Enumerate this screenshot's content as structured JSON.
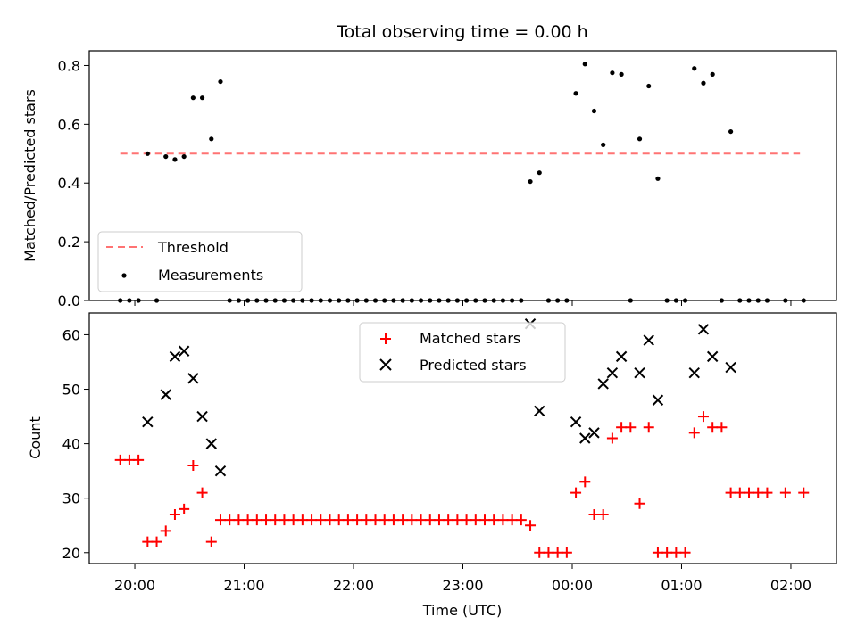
{
  "title": "Total observing time = 0.00 h",
  "colors": {
    "threshold": "#ff7373",
    "measurement": "#000000",
    "matched": "#ff0000",
    "predicted": "#000000"
  },
  "chart_data": [
    {
      "type": "scatter",
      "panel": "top",
      "title": "Total observing time = 0.00 h",
      "xlabel": "",
      "ylabel": "Matched/Predicted stars",
      "ylim": [
        0,
        0.85
      ],
      "yticks": [
        0.0,
        0.2,
        0.4,
        0.6,
        0.8
      ],
      "ytick_labels": [
        "0.0",
        "0.2",
        "0.4",
        "0.6",
        "0.8"
      ],
      "legend": {
        "placement": "lower left",
        "entries": [
          "Threshold",
          "Measurements"
        ]
      },
      "threshold": {
        "name": "Threshold",
        "y": 0.5,
        "x_start": "19:52",
        "x_end": "02:05"
      },
      "series": [
        {
          "name": "Measurements",
          "points": [
            [
              "19:52",
              0
            ],
            [
              "19:57",
              0
            ],
            [
              "20:02",
              0
            ],
            [
              "20:07",
              0.5
            ],
            [
              "20:12",
              0
            ],
            [
              "20:17",
              0.49
            ],
            [
              "20:22",
              0.48
            ],
            [
              "20:27",
              0.49
            ],
            [
              "20:32",
              0.69
            ],
            [
              "20:37",
              0.69
            ],
            [
              "20:42",
              0.55
            ],
            [
              "20:47",
              0.745
            ],
            [
              "20:52",
              0
            ],
            [
              "20:57",
              0
            ],
            [
              "21:02",
              0
            ],
            [
              "21:07",
              0
            ],
            [
              "21:12",
              0
            ],
            [
              "21:17",
              0
            ],
            [
              "21:22",
              0
            ],
            [
              "21:27",
              0
            ],
            [
              "21:32",
              0
            ],
            [
              "21:37",
              0
            ],
            [
              "21:42",
              0
            ],
            [
              "21:47",
              0
            ],
            [
              "21:52",
              0
            ],
            [
              "21:57",
              0
            ],
            [
              "22:02",
              0
            ],
            [
              "22:07",
              0
            ],
            [
              "22:12",
              0
            ],
            [
              "22:17",
              0
            ],
            [
              "22:22",
              0
            ],
            [
              "22:27",
              0
            ],
            [
              "22:32",
              0
            ],
            [
              "22:37",
              0
            ],
            [
              "22:42",
              0
            ],
            [
              "22:47",
              0
            ],
            [
              "22:52",
              0
            ],
            [
              "22:57",
              0
            ],
            [
              "23:02",
              0
            ],
            [
              "23:07",
              0
            ],
            [
              "23:12",
              0
            ],
            [
              "23:17",
              0
            ],
            [
              "23:22",
              0
            ],
            [
              "23:27",
              0
            ],
            [
              "23:32",
              0
            ],
            [
              "23:37",
              0.405
            ],
            [
              "23:42",
              0.435
            ],
            [
              "23:47",
              0
            ],
            [
              "23:52",
              0
            ],
            [
              "23:57",
              0
            ],
            [
              "00:02",
              0.705
            ],
            [
              "00:07",
              0.805
            ],
            [
              "00:12",
              0.645
            ],
            [
              "00:17",
              0.53
            ],
            [
              "00:22",
              0.775
            ],
            [
              "00:27",
              0.77
            ],
            [
              "00:32",
              0
            ],
            [
              "00:37",
              0.55
            ],
            [
              "00:42",
              0.73
            ],
            [
              "00:47",
              0.415
            ],
            [
              "00:52",
              0
            ],
            [
              "00:57",
              0
            ],
            [
              "01:02",
              0
            ],
            [
              "01:07",
              0.79
            ],
            [
              "01:12",
              0.74
            ],
            [
              "01:17",
              0.77
            ],
            [
              "01:22",
              0
            ],
            [
              "01:27",
              0.575
            ],
            [
              "01:32",
              0
            ],
            [
              "01:37",
              0
            ],
            [
              "01:42",
              0
            ],
            [
              "01:47",
              0
            ],
            [
              "01:57",
              0
            ],
            [
              "02:07",
              0
            ]
          ]
        }
      ]
    },
    {
      "type": "scatter",
      "panel": "bottom",
      "title": "",
      "xlabel": "Time (UTC)",
      "ylabel": "Count",
      "ylim": [
        18,
        64
      ],
      "yticks": [
        20,
        30,
        40,
        50,
        60
      ],
      "ytick_labels": [
        "20",
        "30",
        "40",
        "50",
        "60"
      ],
      "xticks": [
        "20:00",
        "21:00",
        "22:00",
        "23:00",
        "00:00",
        "01:00",
        "02:00"
      ],
      "xlim": [
        "19:35",
        "02:25"
      ],
      "legend": {
        "placement": "upper center",
        "entries": [
          "Matched stars",
          "Predicted stars"
        ]
      },
      "series": [
        {
          "name": "Matched stars",
          "marker": "plus",
          "points": [
            [
              "19:52",
              37
            ],
            [
              "19:57",
              37
            ],
            [
              "20:02",
              37
            ],
            [
              "20:07",
              22
            ],
            [
              "20:12",
              22
            ],
            [
              "20:17",
              24
            ],
            [
              "20:22",
              27
            ],
            [
              "20:27",
              28
            ],
            [
              "20:32",
              36
            ],
            [
              "20:37",
              31
            ],
            [
              "20:42",
              22
            ],
            [
              "20:47",
              26
            ],
            [
              "20:52",
              26
            ],
            [
              "20:57",
              26
            ],
            [
              "21:02",
              26
            ],
            [
              "21:07",
              26
            ],
            [
              "21:12",
              26
            ],
            [
              "21:17",
              26
            ],
            [
              "21:22",
              26
            ],
            [
              "21:27",
              26
            ],
            [
              "21:32",
              26
            ],
            [
              "21:37",
              26
            ],
            [
              "21:42",
              26
            ],
            [
              "21:47",
              26
            ],
            [
              "21:52",
              26
            ],
            [
              "21:57",
              26
            ],
            [
              "22:02",
              26
            ],
            [
              "22:07",
              26
            ],
            [
              "22:12",
              26
            ],
            [
              "22:17",
              26
            ],
            [
              "22:22",
              26
            ],
            [
              "22:27",
              26
            ],
            [
              "22:32",
              26
            ],
            [
              "22:37",
              26
            ],
            [
              "22:42",
              26
            ],
            [
              "22:47",
              26
            ],
            [
              "22:52",
              26
            ],
            [
              "22:57",
              26
            ],
            [
              "23:02",
              26
            ],
            [
              "23:07",
              26
            ],
            [
              "23:12",
              26
            ],
            [
              "23:17",
              26
            ],
            [
              "23:22",
              26
            ],
            [
              "23:27",
              26
            ],
            [
              "23:32",
              26
            ],
            [
              "23:37",
              25
            ],
            [
              "23:42",
              20
            ],
            [
              "23:47",
              20
            ],
            [
              "23:52",
              20
            ],
            [
              "23:57",
              20
            ],
            [
              "00:02",
              31
            ],
            [
              "00:07",
              33
            ],
            [
              "00:12",
              27
            ],
            [
              "00:17",
              27
            ],
            [
              "00:22",
              41
            ],
            [
              "00:27",
              43
            ],
            [
              "00:32",
              43
            ],
            [
              "00:37",
              29
            ],
            [
              "00:42",
              43
            ],
            [
              "00:47",
              20
            ],
            [
              "00:52",
              20
            ],
            [
              "00:57",
              20
            ],
            [
              "01:02",
              20
            ],
            [
              "01:07",
              42
            ],
            [
              "01:12",
              45
            ],
            [
              "01:17",
              43
            ],
            [
              "01:22",
              43
            ],
            [
              "01:27",
              31
            ],
            [
              "01:32",
              31
            ],
            [
              "01:37",
              31
            ],
            [
              "01:42",
              31
            ],
            [
              "01:47",
              31
            ],
            [
              "01:57",
              31
            ],
            [
              "02:07",
              31
            ]
          ]
        },
        {
          "name": "Predicted stars",
          "marker": "x",
          "points": [
            [
              "20:07",
              44
            ],
            [
              "20:17",
              49
            ],
            [
              "20:22",
              56
            ],
            [
              "20:27",
              57
            ],
            [
              "20:32",
              52
            ],
            [
              "20:37",
              45
            ],
            [
              "20:42",
              40
            ],
            [
              "20:47",
              35
            ],
            [
              "23:37",
              62
            ],
            [
              "23:42",
              46
            ],
            [
              "00:02",
              44
            ],
            [
              "00:07",
              41
            ],
            [
              "00:12",
              42
            ],
            [
              "00:17",
              51
            ],
            [
              "00:22",
              53
            ],
            [
              "00:27",
              56
            ],
            [
              "00:37",
              53
            ],
            [
              "00:42",
              59
            ],
            [
              "00:47",
              48
            ],
            [
              "01:07",
              53
            ],
            [
              "01:12",
              61
            ],
            [
              "01:17",
              56
            ],
            [
              "01:27",
              54
            ]
          ]
        }
      ]
    }
  ]
}
